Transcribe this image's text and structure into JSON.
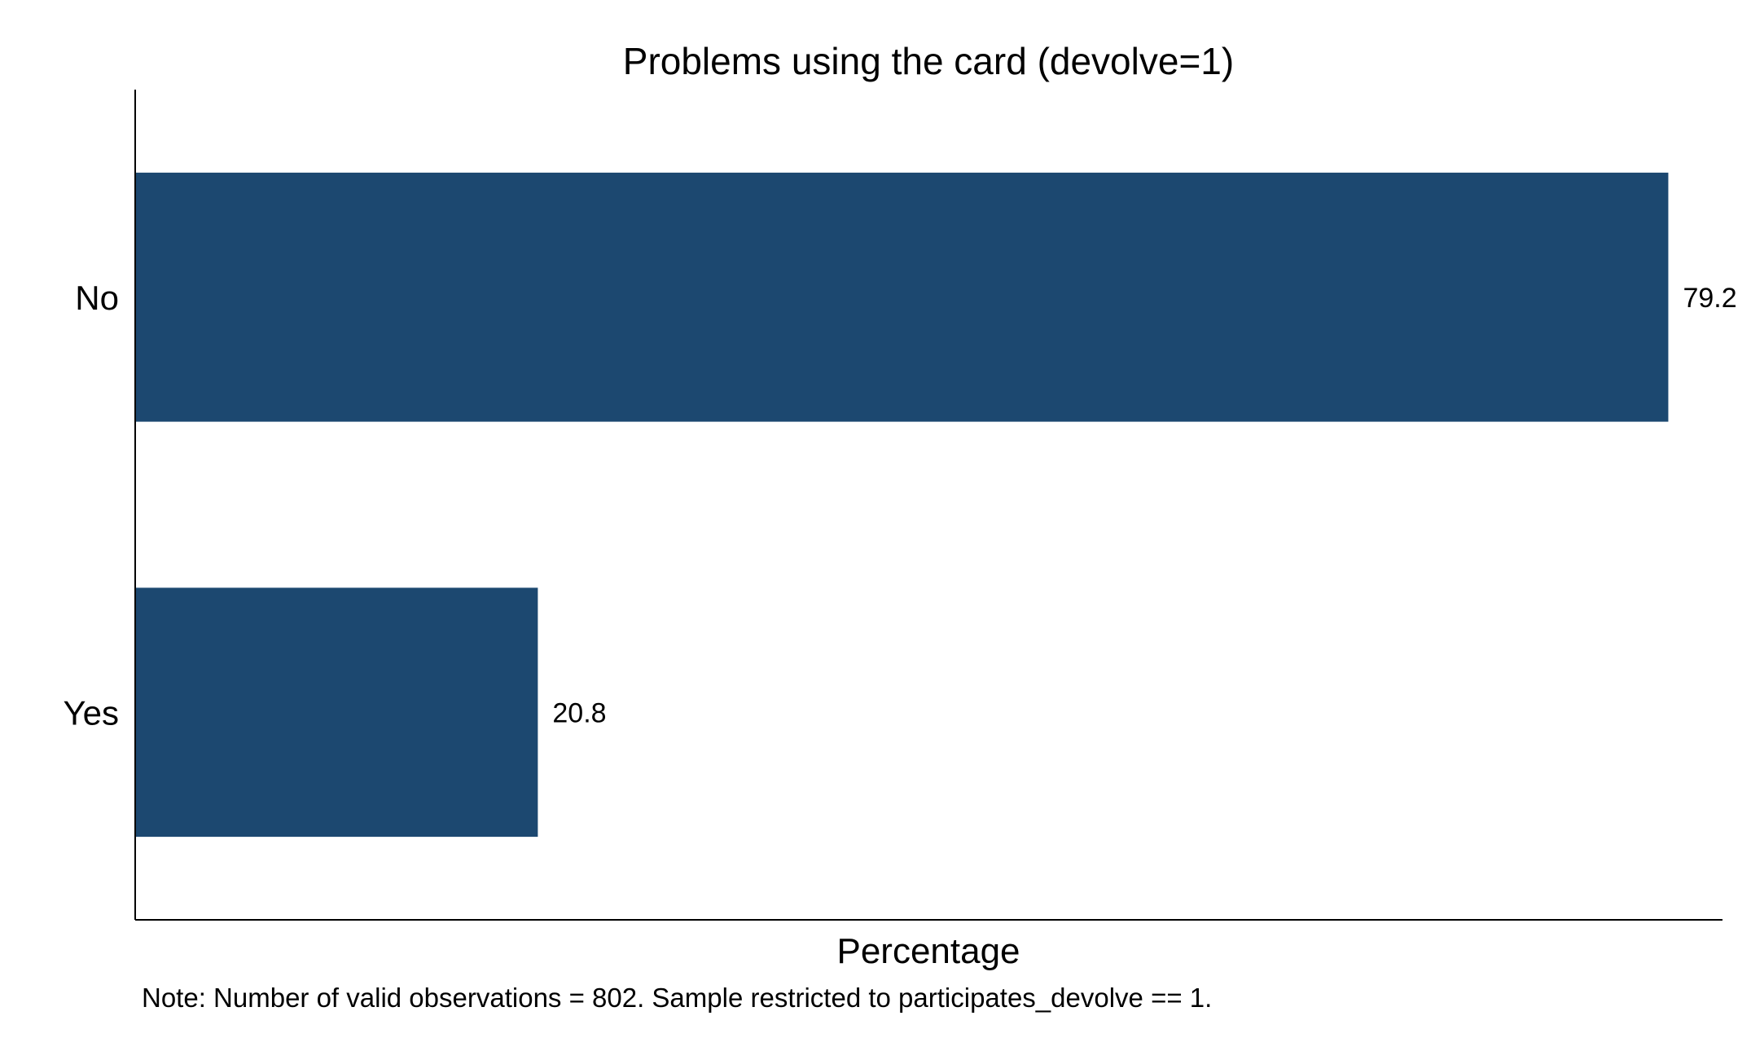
{
  "chart_data": {
    "type": "bar",
    "orientation": "horizontal",
    "title": "Problems using the card (devolve=1)",
    "categories": [
      "No",
      "Yes"
    ],
    "values": [
      79.2,
      20.8
    ],
    "value_labels": [
      "79.2",
      "20.8"
    ],
    "xlabel": "Percentage",
    "ylabel": "",
    "xlim": [
      0,
      82
    ],
    "grid": false,
    "legend": "none",
    "bar_color": "#1c4870",
    "note": "Note: Number of valid observations = 802. Sample restricted to participates_devolve == 1."
  }
}
